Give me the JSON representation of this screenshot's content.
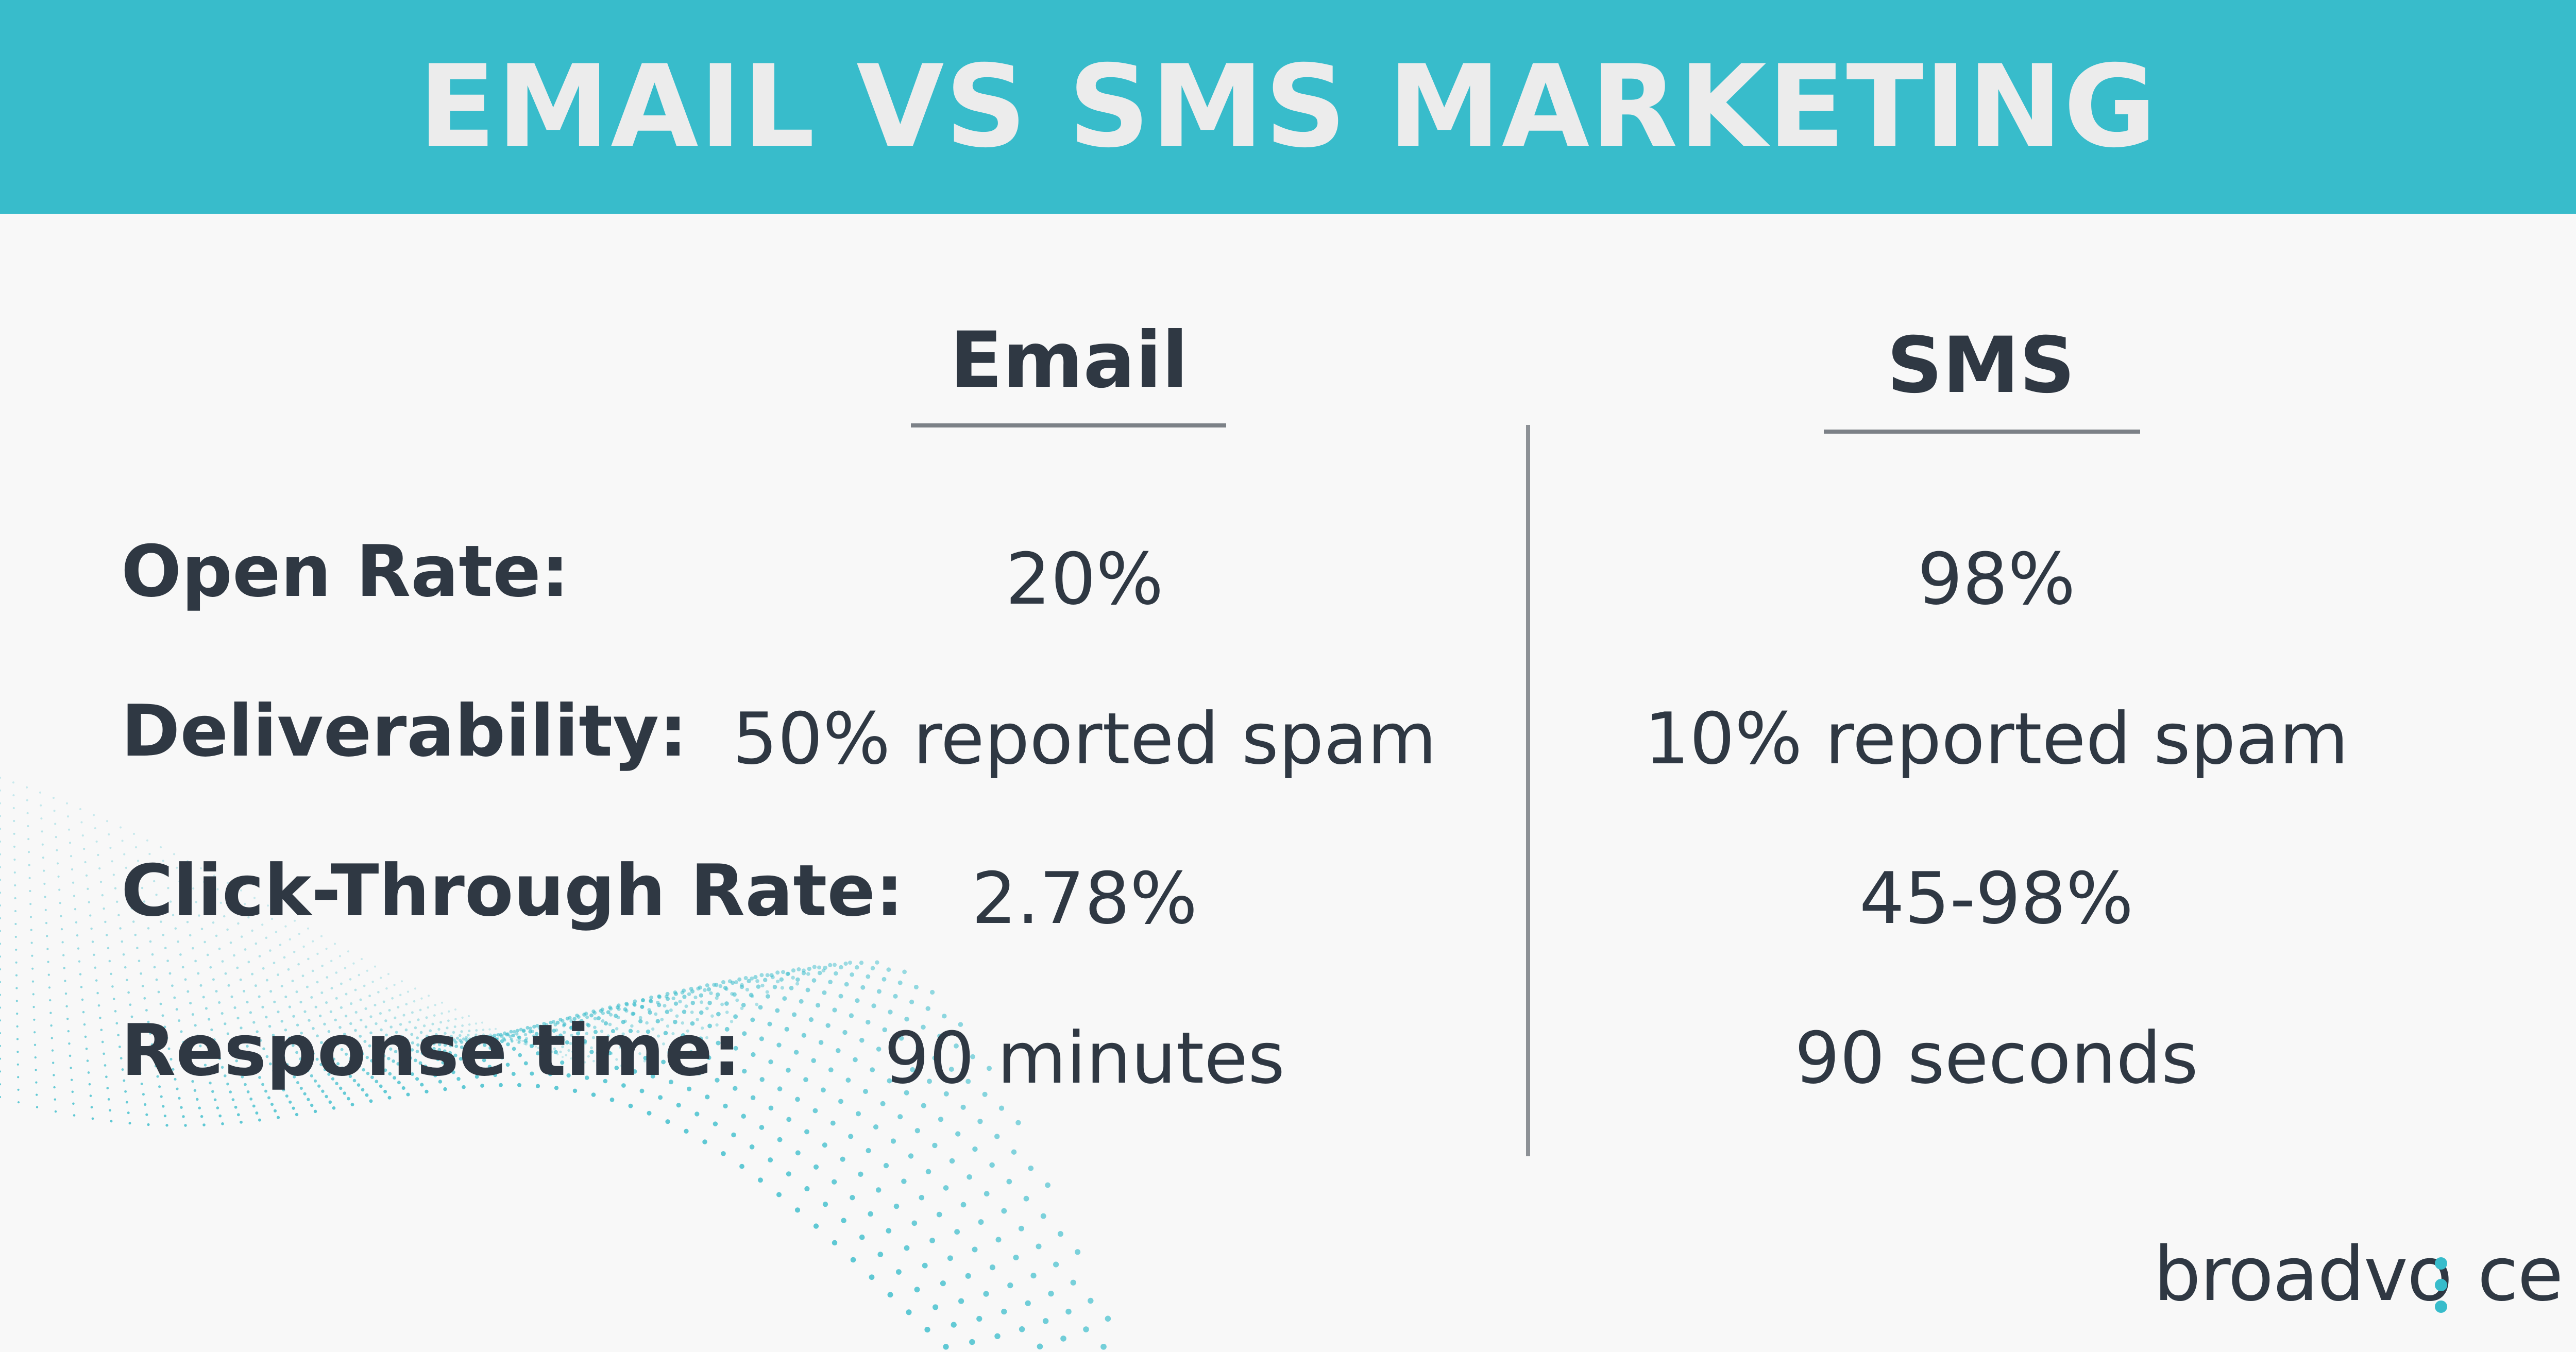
{
  "header": {
    "title": "EMAIL VS SMS MARKETING",
    "background_color": "#38bccb",
    "title_color": "#ececec"
  },
  "table": {
    "columns": [
      "Email",
      "SMS"
    ],
    "rows": [
      {
        "label": "Open Rate:",
        "email": "20%",
        "sms": "98%"
      },
      {
        "label": "Deliverability:",
        "email": "50% reported spam",
        "sms": "10% reported spam"
      },
      {
        "label": "Click-Through Rate:",
        "email": "2.78%",
        "sms": "45-98%"
      },
      {
        "label": "Response time:",
        "email": "90 minutes",
        "sms": "90 seconds"
      }
    ]
  },
  "logo": {
    "text_before": "broadvo",
    "text_after": "ce",
    "accent_color": "#38bccb"
  },
  "colors": {
    "text": "#2f3843",
    "background": "#f8f8f8",
    "rule": "#7c8187"
  }
}
